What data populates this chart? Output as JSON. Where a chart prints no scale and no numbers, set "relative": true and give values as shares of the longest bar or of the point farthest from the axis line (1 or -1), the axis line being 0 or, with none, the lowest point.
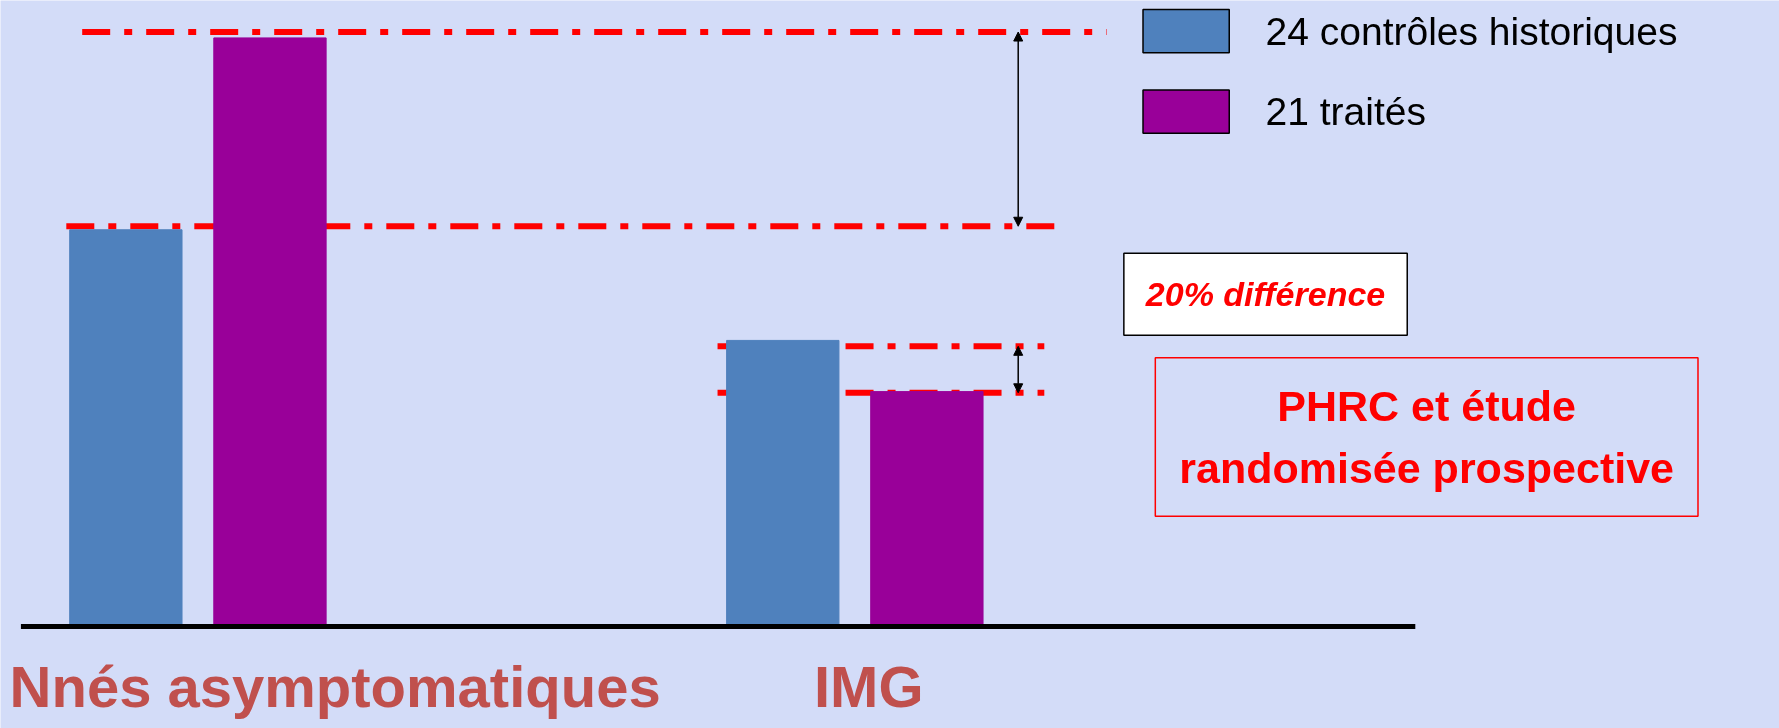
{
  "chart_data": {
    "type": "bar",
    "relative": true,
    "categories": [
      "Nnés asymptomatiques",
      "IMG"
    ],
    "series": [
      {
        "name": "24 contrôles historiques",
        "color": "#4f81bd",
        "values": [
          0.674,
          0.486
        ]
      },
      {
        "name": "21 traités",
        "color": "#990099",
        "values": [
          1,
          0.399
        ]
      }
    ],
    "ref_lines": [
      {
        "axis": "y",
        "value": 1.01,
        "color": "#ff0000",
        "line_style": "dashdot"
      },
      {
        "axis": "y",
        "value": 0.68,
        "color": "#ff0000",
        "line_style": "dashdot"
      },
      {
        "axis": "y",
        "value": 0.476,
        "color": "#ff0000",
        "line_style": "dashdot"
      },
      {
        "axis": "y",
        "value": 0.397,
        "color": "#ff0000",
        "line_style": "dashdot"
      }
    ],
    "annotations": [
      "20% différence",
      "PHRC et étude randomisée prospective"
    ],
    "legend": "top right",
    "grid": false
  }
}
